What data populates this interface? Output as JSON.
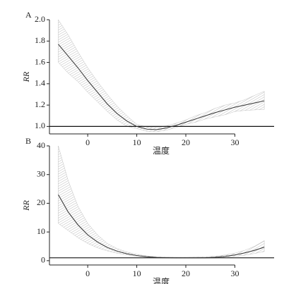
{
  "chart_data": [
    {
      "type": "line",
      "panel": "A",
      "ylabel": "RR",
      "xlabel": "温度",
      "color": "#333333",
      "band_color": "#9a9a9a",
      "x": [
        -6,
        -4,
        -2,
        0,
        2,
        4,
        6,
        8,
        10,
        12,
        14,
        16,
        18,
        20,
        22,
        24,
        26,
        28,
        30,
        32,
        34,
        36
      ],
      "values": [
        1.77,
        1.66,
        1.55,
        1.43,
        1.32,
        1.21,
        1.12,
        1.05,
        1.0,
        0.975,
        0.97,
        0.985,
        1.01,
        1.04,
        1.07,
        1.1,
        1.13,
        1.155,
        1.18,
        1.2,
        1.22,
        1.24
      ],
      "ci_upper": [
        2.0,
        1.86,
        1.7,
        1.55,
        1.42,
        1.3,
        1.19,
        1.1,
        1.02,
        0.995,
        0.99,
        1.005,
        1.03,
        1.06,
        1.1,
        1.13,
        1.17,
        1.2,
        1.22,
        1.25,
        1.29,
        1.33
      ],
      "ci_lower": [
        1.6,
        1.5,
        1.42,
        1.32,
        1.23,
        1.14,
        1.06,
        1.0,
        0.98,
        0.955,
        0.95,
        0.965,
        0.99,
        1.02,
        1.04,
        1.07,
        1.09,
        1.11,
        1.14,
        1.15,
        1.155,
        1.16
      ],
      "hline": 1,
      "xlim": [
        -7.8,
        38
      ],
      "ylim": [
        0.93,
        2.0
      ],
      "xticks": [
        0,
        10,
        20,
        30
      ],
      "yticks": [
        {
          "value": 1,
          "label": "1.0"
        },
        {
          "value": 1.2,
          "label": "1.2"
        },
        {
          "value": 1.4,
          "label": "1.4"
        },
        {
          "value": 1.6,
          "label": "1.6"
        },
        {
          "value": 1.8,
          "label": "1.8"
        },
        {
          "value": 2,
          "label": "2.0"
        }
      ]
    },
    {
      "type": "line",
      "panel": "B",
      "ylabel": "RR",
      "xlabel": "温度",
      "color": "#333333",
      "band_color": "#9a9a9a",
      "x": [
        -6,
        -4,
        -2,
        0,
        2,
        4,
        6,
        8,
        10,
        12,
        14,
        16,
        18,
        20,
        22,
        24,
        26,
        28,
        30,
        32,
        34,
        36
      ],
      "values": [
        23,
        17,
        12.5,
        9,
        6.5,
        4.6,
        3.3,
        2.4,
        1.8,
        1.4,
        1.15,
        1.05,
        1.0,
        1.0,
        1.0,
        1.05,
        1.2,
        1.5,
        2.0,
        2.7,
        3.6,
        4.7
      ],
      "ci_upper": [
        40,
        28,
        19,
        13,
        9,
        6,
        4.2,
        3,
        2.2,
        1.7,
        1.4,
        1.25,
        1.2,
        1.2,
        1.25,
        1.35,
        1.6,
        2.0,
        2.6,
        3.6,
        5.0,
        7.0
      ],
      "ci_lower": [
        13,
        10.5,
        8,
        6,
        4.5,
        3.4,
        2.6,
        2,
        1.5,
        1.2,
        1.0,
        0.9,
        0.85,
        0.85,
        0.85,
        0.85,
        0.95,
        1.15,
        1.5,
        1.9,
        2.5,
        3.2
      ],
      "hline": 1,
      "xlim": [
        -7.8,
        38
      ],
      "ylim": [
        -1.5,
        40
      ],
      "xticks": [
        0,
        10,
        20,
        30
      ],
      "yticks": [
        0,
        10,
        20,
        30,
        40
      ]
    }
  ]
}
